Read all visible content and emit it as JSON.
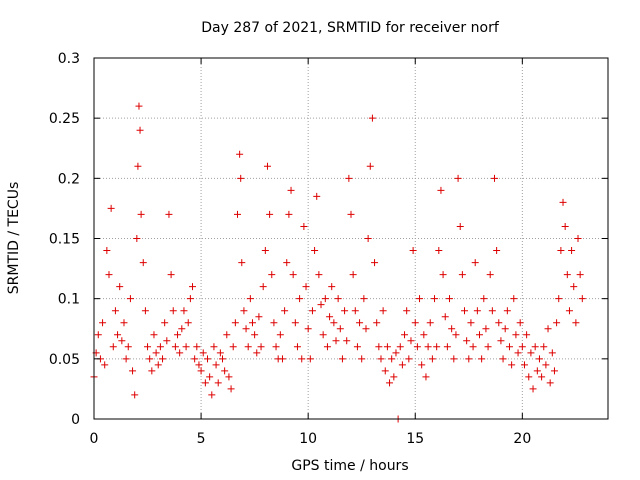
{
  "chart_data": {
    "type": "scatter",
    "title": "Day 287 of 2021, SRMTID for receiver norf",
    "xlabel": "GPS time / hours",
    "ylabel": "SRMTID / TECUs",
    "xlim": [
      0,
      24
    ],
    "ylim": [
      0,
      0.3
    ],
    "x_ticks": [
      0,
      5,
      10,
      15,
      20
    ],
    "x_tick_labels": [
      "0",
      "5",
      "10",
      "15",
      "20"
    ],
    "y_ticks": [
      0,
      0.05,
      0.1,
      0.15,
      0.2,
      0.25,
      0.3
    ],
    "y_tick_labels": [
      "0",
      "0.05",
      "0.1",
      "0.15",
      "0.2",
      "0.25",
      "0.3"
    ],
    "grid": true,
    "marker": "plus",
    "colors": {
      "series": "#dd0000",
      "grid": "#a0a0a0",
      "axis": "#000000"
    },
    "series": [
      {
        "name": "norf",
        "points": [
          [
            0.0,
            0.035
          ],
          [
            0.1,
            0.055
          ],
          [
            0.2,
            0.07
          ],
          [
            0.3,
            0.05
          ],
          [
            0.4,
            0.08
          ],
          [
            0.5,
            0.045
          ],
          [
            0.6,
            0.14
          ],
          [
            0.7,
            0.12
          ],
          [
            0.8,
            0.175
          ],
          [
            0.9,
            0.06
          ],
          [
            1.0,
            0.09
          ],
          [
            1.1,
            0.07
          ],
          [
            1.2,
            0.11
          ],
          [
            1.3,
            0.065
          ],
          [
            1.4,
            0.08
          ],
          [
            1.5,
            0.05
          ],
          [
            1.6,
            0.06
          ],
          [
            1.7,
            0.1
          ],
          [
            1.8,
            0.04
          ],
          [
            1.9,
            0.02
          ],
          [
            2.0,
            0.15
          ],
          [
            2.05,
            0.21
          ],
          [
            2.1,
            0.26
          ],
          [
            2.15,
            0.24
          ],
          [
            2.2,
            0.17
          ],
          [
            2.3,
            0.13
          ],
          [
            2.4,
            0.09
          ],
          [
            2.5,
            0.06
          ],
          [
            2.6,
            0.05
          ],
          [
            2.7,
            0.04
          ],
          [
            2.8,
            0.07
          ],
          [
            2.9,
            0.055
          ],
          [
            3.0,
            0.045
          ],
          [
            3.1,
            0.06
          ],
          [
            3.2,
            0.05
          ],
          [
            3.3,
            0.08
          ],
          [
            3.4,
            0.065
          ],
          [
            3.5,
            0.17
          ],
          [
            3.6,
            0.12
          ],
          [
            3.7,
            0.09
          ],
          [
            3.8,
            0.06
          ],
          [
            3.9,
            0.07
          ],
          [
            4.0,
            0.055
          ],
          [
            4.1,
            0.075
          ],
          [
            4.2,
            0.09
          ],
          [
            4.3,
            0.06
          ],
          [
            4.4,
            0.08
          ],
          [
            4.5,
            0.1
          ],
          [
            4.6,
            0.11
          ],
          [
            4.7,
            0.05
          ],
          [
            4.8,
            0.06
          ],
          [
            4.9,
            0.045
          ],
          [
            5.0,
            0.04
          ],
          [
            5.1,
            0.055
          ],
          [
            5.2,
            0.03
          ],
          [
            5.3,
            0.05
          ],
          [
            5.4,
            0.035
          ],
          [
            5.5,
            0.02
          ],
          [
            5.6,
            0.06
          ],
          [
            5.7,
            0.045
          ],
          [
            5.8,
            0.03
          ],
          [
            5.9,
            0.055
          ],
          [
            6.0,
            0.05
          ],
          [
            6.1,
            0.04
          ],
          [
            6.2,
            0.07
          ],
          [
            6.3,
            0.035
          ],
          [
            6.4,
            0.025
          ],
          [
            6.5,
            0.06
          ],
          [
            6.6,
            0.08
          ],
          [
            6.7,
            0.17
          ],
          [
            6.8,
            0.22
          ],
          [
            6.85,
            0.2
          ],
          [
            6.9,
            0.13
          ],
          [
            7.0,
            0.09
          ],
          [
            7.1,
            0.075
          ],
          [
            7.2,
            0.06
          ],
          [
            7.3,
            0.1
          ],
          [
            7.4,
            0.08
          ],
          [
            7.5,
            0.07
          ],
          [
            7.6,
            0.055
          ],
          [
            7.7,
            0.085
          ],
          [
            7.8,
            0.06
          ],
          [
            7.9,
            0.11
          ],
          [
            8.0,
            0.14
          ],
          [
            8.1,
            0.21
          ],
          [
            8.2,
            0.17
          ],
          [
            8.3,
            0.12
          ],
          [
            8.4,
            0.08
          ],
          [
            8.5,
            0.06
          ],
          [
            8.6,
            0.05
          ],
          [
            8.7,
            0.07
          ],
          [
            8.8,
            0.05
          ],
          [
            8.9,
            0.09
          ],
          [
            9.0,
            0.13
          ],
          [
            9.1,
            0.17
          ],
          [
            9.2,
            0.19
          ],
          [
            9.3,
            0.12
          ],
          [
            9.4,
            0.08
          ],
          [
            9.5,
            0.06
          ],
          [
            9.6,
            0.1
          ],
          [
            9.7,
            0.05
          ],
          [
            9.8,
            0.16
          ],
          [
            9.9,
            0.11
          ],
          [
            10.0,
            0.075
          ],
          [
            10.1,
            0.05
          ],
          [
            10.2,
            0.09
          ],
          [
            10.3,
            0.14
          ],
          [
            10.4,
            0.185
          ],
          [
            10.5,
            0.12
          ],
          [
            10.6,
            0.095
          ],
          [
            10.7,
            0.07
          ],
          [
            10.8,
            0.1
          ],
          [
            10.9,
            0.06
          ],
          [
            11.0,
            0.085
          ],
          [
            11.1,
            0.11
          ],
          [
            11.2,
            0.08
          ],
          [
            11.3,
            0.065
          ],
          [
            11.4,
            0.1
          ],
          [
            11.5,
            0.075
          ],
          [
            11.6,
            0.05
          ],
          [
            11.7,
            0.09
          ],
          [
            11.8,
            0.065
          ],
          [
            11.9,
            0.2
          ],
          [
            12.0,
            0.17
          ],
          [
            12.1,
            0.12
          ],
          [
            12.2,
            0.09
          ],
          [
            12.3,
            0.06
          ],
          [
            12.4,
            0.08
          ],
          [
            12.5,
            0.05
          ],
          [
            12.6,
            0.1
          ],
          [
            12.7,
            0.075
          ],
          [
            12.8,
            0.15
          ],
          [
            12.9,
            0.21
          ],
          [
            13.0,
            0.25
          ],
          [
            13.1,
            0.13
          ],
          [
            13.2,
            0.08
          ],
          [
            13.3,
            0.06
          ],
          [
            13.4,
            0.05
          ],
          [
            13.5,
            0.09
          ],
          [
            13.6,
            0.04
          ],
          [
            13.7,
            0.06
          ],
          [
            13.8,
            0.03
          ],
          [
            13.9,
            0.05
          ],
          [
            14.0,
            0.035
          ],
          [
            14.1,
            0.055
          ],
          [
            14.2,
            0.0
          ],
          [
            14.3,
            0.06
          ],
          [
            14.4,
            0.045
          ],
          [
            14.5,
            0.07
          ],
          [
            14.6,
            0.09
          ],
          [
            14.7,
            0.05
          ],
          [
            14.8,
            0.065
          ],
          [
            14.9,
            0.14
          ],
          [
            15.0,
            0.08
          ],
          [
            15.1,
            0.06
          ],
          [
            15.2,
            0.1
          ],
          [
            15.3,
            0.045
          ],
          [
            15.4,
            0.07
          ],
          [
            15.5,
            0.035
          ],
          [
            15.6,
            0.06
          ],
          [
            15.7,
            0.08
          ],
          [
            15.8,
            0.05
          ],
          [
            15.9,
            0.1
          ],
          [
            16.0,
            0.06
          ],
          [
            16.1,
            0.14
          ],
          [
            16.2,
            0.19
          ],
          [
            16.3,
            0.12
          ],
          [
            16.4,
            0.085
          ],
          [
            16.5,
            0.06
          ],
          [
            16.6,
            0.1
          ],
          [
            16.7,
            0.075
          ],
          [
            16.8,
            0.05
          ],
          [
            16.9,
            0.07
          ],
          [
            17.0,
            0.2
          ],
          [
            17.1,
            0.16
          ],
          [
            17.2,
            0.12
          ],
          [
            17.3,
            0.09
          ],
          [
            17.4,
            0.065
          ],
          [
            17.5,
            0.05
          ],
          [
            17.6,
            0.08
          ],
          [
            17.7,
            0.06
          ],
          [
            17.8,
            0.13
          ],
          [
            17.9,
            0.09
          ],
          [
            18.0,
            0.07
          ],
          [
            18.1,
            0.05
          ],
          [
            18.2,
            0.1
          ],
          [
            18.3,
            0.075
          ],
          [
            18.4,
            0.06
          ],
          [
            18.5,
            0.12
          ],
          [
            18.6,
            0.09
          ],
          [
            18.7,
            0.2
          ],
          [
            18.8,
            0.14
          ],
          [
            18.9,
            0.08
          ],
          [
            19.0,
            0.065
          ],
          [
            19.1,
            0.05
          ],
          [
            19.2,
            0.075
          ],
          [
            19.3,
            0.09
          ],
          [
            19.4,
            0.06
          ],
          [
            19.5,
            0.045
          ],
          [
            19.6,
            0.1
          ],
          [
            19.7,
            0.07
          ],
          [
            19.8,
            0.055
          ],
          [
            19.9,
            0.08
          ],
          [
            20.0,
            0.06
          ],
          [
            20.1,
            0.045
          ],
          [
            20.2,
            0.07
          ],
          [
            20.3,
            0.035
          ],
          [
            20.4,
            0.055
          ],
          [
            20.5,
            0.025
          ],
          [
            20.6,
            0.06
          ],
          [
            20.7,
            0.04
          ],
          [
            20.8,
            0.05
          ],
          [
            20.9,
            0.035
          ],
          [
            21.0,
            0.06
          ],
          [
            21.1,
            0.045
          ],
          [
            21.2,
            0.075
          ],
          [
            21.3,
            0.03
          ],
          [
            21.4,
            0.055
          ],
          [
            21.5,
            0.04
          ],
          [
            21.6,
            0.08
          ],
          [
            21.7,
            0.1
          ],
          [
            21.8,
            0.14
          ],
          [
            21.9,
            0.18
          ],
          [
            22.0,
            0.16
          ],
          [
            22.1,
            0.12
          ],
          [
            22.2,
            0.09
          ],
          [
            22.3,
            0.14
          ],
          [
            22.4,
            0.11
          ],
          [
            22.5,
            0.08
          ],
          [
            22.6,
            0.15
          ],
          [
            22.7,
            0.12
          ],
          [
            22.8,
            0.1
          ]
        ]
      }
    ]
  }
}
